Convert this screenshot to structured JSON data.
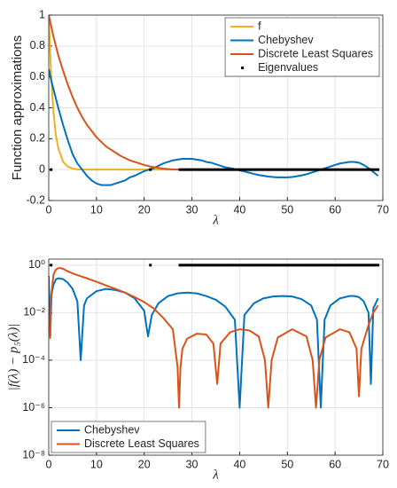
{
  "chart_data": [
    {
      "type": "line",
      "ylabel": "Function approximations",
      "xlabel": "λ",
      "xlim": [
        0,
        70
      ],
      "xticks": [
        0,
        10,
        20,
        30,
        40,
        50,
        60,
        70
      ],
      "ylim": [
        -0.2,
        1
      ],
      "yticks": [
        -0.2,
        0,
        0.2,
        0.4,
        0.6,
        0.8,
        1
      ],
      "grid": true,
      "legend": "northeast",
      "x": [
        0,
        0.5,
        1,
        1.5,
        2,
        3,
        4,
        5,
        6,
        7,
        8,
        9,
        10,
        11,
        12,
        13,
        14,
        15,
        16,
        17,
        18,
        19,
        20,
        21,
        22,
        23,
        24,
        25,
        26,
        27,
        28,
        29,
        30,
        31,
        32,
        33,
        34,
        35,
        36,
        37,
        38,
        39,
        40,
        41,
        42,
        43,
        44,
        45,
        46,
        47,
        48,
        49,
        50,
        51,
        52,
        53,
        54,
        55,
        56,
        57,
        58,
        59,
        60,
        61,
        62,
        63,
        64,
        65,
        66,
        67,
        68,
        69
      ],
      "series": [
        {
          "name": "f",
          "color": "#EDB120",
          "values": [
            1,
            0.61,
            0.37,
            0.22,
            0.14,
            0.05,
            0.02,
            0.007,
            0.002,
            0.001,
            0,
            0,
            0,
            0,
            0,
            0,
            0,
            0,
            0,
            0,
            0,
            0,
            0,
            0,
            0,
            0,
            0,
            0,
            0,
            0,
            0,
            0,
            0,
            0,
            0,
            0,
            0,
            0,
            0,
            0,
            0,
            0,
            0,
            0,
            0,
            0,
            0,
            0,
            0,
            0,
            0,
            0,
            0,
            0,
            0,
            0,
            0,
            0,
            0,
            0,
            0,
            0,
            0,
            0,
            0,
            0,
            0,
            0,
            0,
            0,
            0,
            0
          ]
        },
        {
          "name": "Chebyshev",
          "color": "#0072BD",
          "values": [
            0.65,
            0.58,
            0.52,
            0.46,
            0.4,
            0.29,
            0.19,
            0.1,
            0.04,
            0.0,
            -0.04,
            -0.07,
            -0.09,
            -0.1,
            -0.1,
            -0.1,
            -0.09,
            -0.08,
            -0.07,
            -0.05,
            -0.04,
            -0.025,
            -0.01,
            0.0,
            0.01,
            0.025,
            0.04,
            0.05,
            0.06,
            0.065,
            0.07,
            0.07,
            0.07,
            0.065,
            0.06,
            0.05,
            0.045,
            0.035,
            0.025,
            0.015,
            0.01,
            0.003,
            -0.005,
            -0.012,
            -0.02,
            -0.028,
            -0.035,
            -0.04,
            -0.045,
            -0.048,
            -0.05,
            -0.05,
            -0.05,
            -0.048,
            -0.043,
            -0.037,
            -0.03,
            -0.02,
            -0.01,
            0.0,
            0.01,
            0.02,
            0.03,
            0.04,
            0.045,
            0.05,
            0.05,
            0.045,
            0.03,
            0.01,
            -0.015,
            -0.04
          ]
        },
        {
          "name": "Discrete Least Squares",
          "color": "#D95319",
          "values": [
            1.0,
            0.93,
            0.86,
            0.8,
            0.74,
            0.64,
            0.55,
            0.47,
            0.4,
            0.34,
            0.29,
            0.25,
            0.21,
            0.18,
            0.15,
            0.13,
            0.11,
            0.09,
            0.075,
            0.06,
            0.05,
            0.04,
            0.03,
            0.022,
            0.016,
            0.011,
            0.007,
            0.004,
            0.002,
            0,
            0,
            0,
            0,
            0,
            0,
            0,
            0,
            0,
            0,
            0,
            0,
            0,
            0,
            0,
            0,
            0,
            0,
            0,
            0,
            0,
            0,
            0,
            0,
            0,
            0,
            0,
            0,
            0,
            0,
            0,
            0,
            0,
            0,
            0,
            0,
            0,
            0,
            0,
            0,
            0,
            0,
            0
          ]
        },
        {
          "name": "Eigenvalues",
          "color": "#000000",
          "type": "scatter",
          "x": [
            0.5,
            21.3,
            27.5,
            28,
            28.5,
            29,
            29.5,
            30,
            30.5,
            31,
            31.5,
            32,
            32.5,
            33,
            33.5,
            34,
            34.5,
            35,
            35.5,
            36,
            36.5,
            37,
            37.5,
            38,
            38.5,
            39,
            39.5,
            40,
            40.5,
            41,
            41.5,
            42,
            42.5,
            43,
            43.5,
            44,
            44.5,
            45,
            45.5,
            46,
            46.5,
            47,
            47.5,
            48,
            48.5,
            49,
            49.5,
            50,
            50.5,
            51,
            51.5,
            52,
            52.5,
            53,
            53.5,
            54,
            54.5,
            55,
            55.5,
            56,
            56.5,
            57,
            57.5,
            58,
            58.5,
            59,
            59.5,
            60,
            60.5,
            61,
            61.5,
            62,
            62.5,
            63,
            63.5,
            64,
            64.5,
            65,
            65.5,
            66,
            66.5,
            67,
            67.5,
            68,
            68.5,
            69
          ],
          "values": [
            0,
            0,
            0,
            0,
            0,
            0,
            0,
            0,
            0,
            0,
            0,
            0,
            0,
            0,
            0,
            0,
            0,
            0,
            0,
            0,
            0,
            0,
            0,
            0,
            0,
            0,
            0,
            0,
            0,
            0,
            0,
            0,
            0,
            0,
            0,
            0,
            0,
            0,
            0,
            0,
            0,
            0,
            0,
            0,
            0,
            0,
            0,
            0,
            0,
            0,
            0,
            0,
            0,
            0,
            0,
            0,
            0,
            0,
            0,
            0,
            0,
            0,
            0,
            0,
            0,
            0,
            0,
            0,
            0,
            0,
            0,
            0,
            0,
            0,
            0,
            0,
            0,
            0,
            0,
            0,
            0,
            0,
            0,
            0,
            0,
            0
          ]
        }
      ]
    },
    {
      "type": "line",
      "ylabel": "|f(λ) − p₅(λ)|",
      "xlabel": "λ",
      "xlim": [
        0,
        70
      ],
      "xticks": [
        0,
        10,
        20,
        30,
        40,
        50,
        60,
        70
      ],
      "yscale": "log",
      "ylim": [
        1e-08,
        1.8
      ],
      "yticks": [
        {
          "value": 1e-08,
          "label": "10⁻⁸"
        },
        {
          "value": 1e-06,
          "label": "10⁻⁶"
        },
        {
          "value": 0.0001,
          "label": "10⁻⁴"
        },
        {
          "value": 0.01,
          "label": "10⁻²"
        },
        {
          "value": 1,
          "label": "10⁰"
        }
      ],
      "grid": true,
      "legend": "southwest",
      "series": [
        {
          "name": "Chebyshev",
          "color": "#0072BD",
          "x": [
            0,
            0.3,
            0.6,
            1,
            1.5,
            2,
            3,
            4,
            5,
            6,
            6.7,
            7.4,
            8,
            10,
            12,
            14,
            16,
            18,
            20,
            20.8,
            21.6,
            23,
            25,
            27,
            29,
            31,
            33,
            35,
            37,
            39,
            40,
            41,
            43,
            45,
            47,
            49,
            51,
            53,
            55,
            56.2,
            57,
            57.8,
            59,
            61,
            63,
            64,
            65,
            66,
            67,
            67.5,
            68,
            69
          ],
          "values": [
            0.35,
            0.001,
            0.06,
            0.15,
            0.25,
            0.28,
            0.26,
            0.18,
            0.1,
            0.03,
            0.0001,
            0.02,
            0.04,
            0.08,
            0.1,
            0.09,
            0.07,
            0.04,
            0.012,
            0.001,
            0.008,
            0.025,
            0.05,
            0.065,
            0.07,
            0.065,
            0.05,
            0.035,
            0.018,
            0.005,
            1e-06,
            0.008,
            0.025,
            0.04,
            0.048,
            0.05,
            0.048,
            0.037,
            0.02,
            0.005,
            1e-06,
            0.005,
            0.02,
            0.04,
            0.05,
            0.05,
            0.045,
            0.03,
            0.01,
            1e-05,
            0.015,
            0.04
          ]
        },
        {
          "name": "Discrete Least Squares",
          "color": "#D95319",
          "x": [
            0.3,
            0.5,
            1,
            1.5,
            2,
            2.5,
            3,
            4,
            5,
            6,
            8,
            10,
            12,
            14,
            16,
            18,
            20,
            22,
            24,
            26,
            27,
            27.3,
            27.6,
            28,
            29,
            31,
            33,
            34.5,
            35.3,
            36,
            38,
            40,
            42,
            44,
            45.3,
            46,
            46.7,
            48,
            51,
            54,
            55.3,
            56,
            56.7,
            58,
            61,
            63,
            64.5,
            65,
            65.5,
            67,
            68,
            69
          ],
          "values": [
            0.0008,
            0.05,
            0.4,
            0.65,
            0.75,
            0.75,
            0.7,
            0.55,
            0.45,
            0.38,
            0.28,
            0.2,
            0.14,
            0.1,
            0.07,
            0.045,
            0.028,
            0.015,
            0.006,
            0.002,
            5e-05,
            1e-06,
            5e-05,
            0.0003,
            0.0008,
            0.0013,
            0.0012,
            0.0005,
            1e-05,
            0.0005,
            0.0015,
            0.002,
            0.0018,
            0.001,
            0.0001,
            1e-06,
            0.0001,
            0.0009,
            0.002,
            0.001,
            0.0001,
            1e-06,
            0.0001,
            0.0009,
            0.002,
            0.0015,
            0.0003,
            3e-06,
            0.0003,
            0.003,
            0.01,
            0.02
          ]
        },
        {
          "color": "#000000",
          "type": "scatter",
          "x": [
            0.5,
            21.3,
            27.5,
            28,
            28.5,
            29,
            29.5,
            30,
            30.5,
            31,
            31.5,
            32,
            32.5,
            33,
            33.5,
            34,
            34.5,
            35,
            35.5,
            36,
            36.5,
            37,
            37.5,
            38,
            38.5,
            39,
            39.5,
            40,
            40.5,
            41,
            41.5,
            42,
            42.5,
            43,
            43.5,
            44,
            44.5,
            45,
            45.5,
            46,
            46.5,
            47,
            47.5,
            48,
            48.5,
            49,
            49.5,
            50,
            50.5,
            51,
            51.5,
            52,
            52.5,
            53,
            53.5,
            54,
            54.5,
            55,
            55.5,
            56,
            56.5,
            57,
            57.5,
            58,
            58.5,
            59,
            59.5,
            60,
            60.5,
            61,
            61.5,
            62,
            62.5,
            63,
            63.5,
            64,
            64.5,
            65,
            65.5,
            66,
            66.5,
            67,
            67.5,
            68,
            68.5,
            69
          ],
          "values": [
            1,
            1,
            1,
            1,
            1,
            1,
            1,
            1,
            1,
            1,
            1,
            1,
            1,
            1,
            1,
            1,
            1,
            1,
            1,
            1,
            1,
            1,
            1,
            1,
            1,
            1,
            1,
            1,
            1,
            1,
            1,
            1,
            1,
            1,
            1,
            1,
            1,
            1,
            1,
            1,
            1,
            1,
            1,
            1,
            1,
            1,
            1,
            1,
            1,
            1,
            1,
            1,
            1,
            1,
            1,
            1,
            1,
            1,
            1,
            1,
            1,
            1,
            1,
            1,
            1,
            1,
            1,
            1,
            1,
            1,
            1,
            1,
            1,
            1,
            1,
            1,
            1,
            1,
            1,
            1,
            1,
            1,
            1,
            1,
            1,
            1
          ]
        }
      ]
    }
  ]
}
